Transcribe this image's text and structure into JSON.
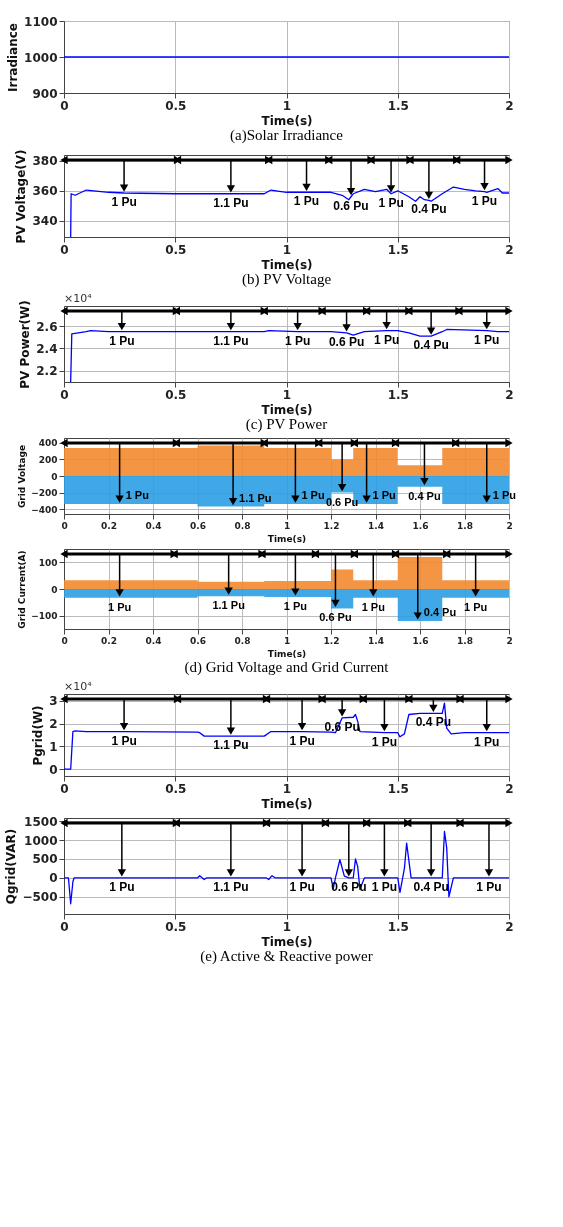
{
  "chart_data": [
    {
      "type": "line",
      "title": "(a)Solar Irradiance",
      "xlabel": "Time(s)",
      "ylabel": "Irradiance",
      "x": [
        0,
        2
      ],
      "series": [
        {
          "color": "#0000ff",
          "values": [
            1000,
            1000
          ]
        }
      ],
      "xlim": [
        0,
        2
      ],
      "xticks": [
        0,
        0.5,
        1,
        1.5,
        2
      ],
      "ylim": [
        900,
        1100
      ],
      "yticks": [
        900,
        1000,
        1100
      ],
      "grid": true
    },
    {
      "type": "line",
      "title": "(b) PV Voltage",
      "xlabel": "Time(s)",
      "ylabel": "PV Voltage(V)",
      "x": [
        0.03,
        0.032,
        0.05,
        0.1,
        0.2,
        0.27,
        0.5,
        0.75,
        0.9,
        0.93,
        1.0,
        1.09,
        1.2,
        1.25,
        1.28,
        1.29,
        1.3,
        1.35,
        1.4,
        1.45,
        1.47,
        1.5,
        1.55,
        1.58,
        1.6,
        1.62,
        1.64,
        1.65,
        1.7,
        1.75,
        1.8,
        1.85,
        1.89,
        1.9,
        1.95,
        1.97,
        2
      ],
      "series": [
        {
          "color": "#0000ff",
          "values": [
            329,
            358,
            357,
            360.5,
            359,
            358.5,
            358,
            358,
            358,
            360.5,
            359,
            359,
            359,
            357,
            354,
            356,
            358,
            361,
            359.5,
            361,
            358,
            360,
            356,
            353,
            356,
            354,
            353.5,
            353,
            358,
            362.5,
            361,
            360,
            359.5,
            359,
            361.5,
            358.5,
            358.5
          ]
        }
      ],
      "annotations": [
        {
          "text": "1 Pu",
          "x": 0.27,
          "y": 358.5
        },
        {
          "text": "1.1 Pu",
          "x": 0.75,
          "y": 358
        },
        {
          "text": "1 Pu",
          "x": 1.09,
          "y": 359
        },
        {
          "text": "0.6 Pu",
          "x": 1.29,
          "y": 356
        },
        {
          "text": "1 Pu",
          "x": 1.47,
          "y": 358
        },
        {
          "text": "0.4 Pu",
          "x": 1.64,
          "y": 353.5
        },
        {
          "text": "1 Pu",
          "x": 1.89,
          "y": 359.5
        }
      ],
      "xlim": [
        0,
        2
      ],
      "xticks": [
        0,
        0.5,
        1,
        1.5,
        2
      ],
      "ylim": [
        329,
        384
      ],
      "yticks": [
        340,
        360,
        380
      ],
      "grid": true
    },
    {
      "type": "line",
      "title": "(c) PV Power",
      "subtitle": "×10⁴",
      "xlabel": "Time(s)",
      "ylabel": "PV Power(W)",
      "x": [
        0.03,
        0.035,
        0.1,
        0.12,
        0.2,
        0.26,
        0.6,
        0.75,
        0.9,
        0.92,
        1.05,
        1.2,
        1.27,
        1.3,
        1.35,
        1.45,
        1.5,
        1.55,
        1.6,
        1.65,
        1.7,
        1.72,
        1.9,
        1.95,
        2
      ],
      "series": [
        {
          "color": "#0000ff",
          "values": [
            2.1,
            2.53,
            2.55,
            2.56,
            2.55,
            2.55,
            2.55,
            2.55,
            2.55,
            2.56,
            2.55,
            2.55,
            2.54,
            2.52,
            2.55,
            2.56,
            2.56,
            2.54,
            2.51,
            2.51,
            2.55,
            2.57,
            2.56,
            2.55,
            2.55
          ]
        }
      ],
      "annotations": [
        {
          "text": "1 Pu",
          "x": 0.26,
          "y": 2.55
        },
        {
          "text": "1.1 Pu",
          "x": 0.75,
          "y": 2.55
        },
        {
          "text": "1 Pu",
          "x": 1.05,
          "y": 2.55
        },
        {
          "text": "0.6 Pu",
          "x": 1.27,
          "y": 2.54
        },
        {
          "text": "1 Pu",
          "x": 1.45,
          "y": 2.56
        },
        {
          "text": "0.4 Pu",
          "x": 1.65,
          "y": 2.51
        },
        {
          "text": "1 Pu",
          "x": 1.9,
          "y": 2.56
        }
      ],
      "xlim": [
        0,
        2
      ],
      "xticks": [
        0,
        0.5,
        1,
        1.5,
        2
      ],
      "ylim": [
        2.1,
        2.78
      ],
      "yticks": [
        2.2,
        2.4,
        2.6
      ],
      "grid": true
    },
    {
      "type": "area",
      "xlabel": "Time(s)",
      "ylabel": "Grid Voltage",
      "x": [
        0,
        0.6,
        0.6,
        0.9,
        0.9,
        1.2,
        1.2,
        1.3,
        1.3,
        1.5,
        1.5,
        1.7,
        1.7,
        2
      ],
      "series": [
        {
          "color": "#f28a2e",
          "values": [
            340,
            340,
            370,
            370,
            340,
            340,
            200,
            200,
            340,
            340,
            130,
            130,
            340,
            340
          ]
        },
        {
          "color": "#2b9fe3",
          "values": [
            -340,
            -340,
            -370,
            -370,
            -340,
            -340,
            -200,
            -200,
            -340,
            -340,
            -130,
            -130,
            -340,
            -340
          ]
        }
      ],
      "annotations": [
        {
          "text": "1 Pu",
          "x": 0.25,
          "y": -340
        },
        {
          "text": "1.1 Pu",
          "x": 0.76,
          "y": -370
        },
        {
          "text": "1 Pu",
          "x": 1.04,
          "y": -340
        },
        {
          "text": "0.6 Pu",
          "x": 1.25,
          "y": -200
        },
        {
          "text": "1 Pu",
          "x": 1.36,
          "y": -340
        },
        {
          "text": "0.4 Pu",
          "x": 1.62,
          "y": -130
        },
        {
          "text": "1 Pu",
          "x": 1.9,
          "y": -340
        }
      ],
      "xlim": [
        0,
        2
      ],
      "xticks": [
        0,
        0.2,
        0.4,
        0.6,
        0.8,
        1,
        1.2,
        1.4,
        1.6,
        1.8,
        2
      ],
      "ylim": [
        -460,
        460
      ],
      "yticks": [
        -400,
        -200,
        0,
        200,
        400
      ],
      "grid": true
    },
    {
      "type": "area",
      "title": "(d) Grid Voltage and Grid Current",
      "xlabel": "Time(s)",
      "ylabel": "Grid Current(A)",
      "x": [
        0,
        0.6,
        0.6,
        0.9,
        0.9,
        1.2,
        1.2,
        1.3,
        1.3,
        1.5,
        1.5,
        1.7,
        1.7,
        2
      ],
      "series": [
        {
          "color": "#f28a2e",
          "values": [
            33,
            33,
            27,
            27,
            30,
            30,
            73,
            73,
            33,
            33,
            120,
            120,
            33,
            33
          ]
        },
        {
          "color": "#2b9fe3",
          "values": [
            -33,
            -33,
            -27,
            -27,
            -30,
            -30,
            -73,
            -73,
            -33,
            -33,
            -120,
            -120,
            -33,
            -33
          ]
        }
      ],
      "annotations": [
        {
          "text": "1 Pu",
          "x": 0.25,
          "y": -33
        },
        {
          "text": "1.1 Pu",
          "x": 0.74,
          "y": -27
        },
        {
          "text": "1 Pu",
          "x": 1.04,
          "y": -30
        },
        {
          "text": "0.6 Pu",
          "x": 1.22,
          "y": -73
        },
        {
          "text": "1 Pu",
          "x": 1.39,
          "y": -33
        },
        {
          "text": "0.4 Pu",
          "x": 1.59,
          "y": -120
        },
        {
          "text": "1 Pu",
          "x": 1.85,
          "y": -33
        }
      ],
      "xlim": [
        0,
        2
      ],
      "xticks": [
        0,
        0.2,
        0.4,
        0.6,
        0.8,
        1,
        1.2,
        1.4,
        1.6,
        1.8,
        2
      ],
      "ylim": [
        -150,
        150
      ],
      "yticks": [
        -100,
        0,
        100
      ],
      "grid": true
    },
    {
      "type": "line",
      "subtitle": "×10⁴",
      "xlabel": "Time(s)",
      "ylabel": "Pgrid(W)",
      "x": [
        0,
        0.03,
        0.04,
        0.05,
        0.1,
        0.27,
        0.6,
        0.61,
        0.63,
        0.75,
        0.9,
        0.93,
        1.07,
        1.2,
        1.22,
        1.25,
        1.3,
        1.31,
        1.32,
        1.33,
        1.44,
        1.5,
        1.51,
        1.53,
        1.55,
        1.6,
        1.66,
        1.7,
        1.71,
        1.72,
        1.74,
        1.8,
        1.9,
        2
      ],
      "series": [
        {
          "color": "#0000ff",
          "values": [
            0,
            0,
            1.65,
            1.68,
            1.65,
            1.65,
            1.63,
            1.6,
            1.45,
            1.45,
            1.45,
            1.65,
            1.65,
            1.63,
            1.6,
            2.25,
            2.28,
            2.4,
            2.1,
            1.65,
            1.6,
            1.6,
            1.42,
            1.55,
            2.4,
            2.45,
            2.45,
            2.45,
            2.9,
            1.8,
            1.55,
            1.6,
            1.6,
            1.6
          ]
        }
      ],
      "annotations": [
        {
          "text": "1 Pu",
          "x": 0.27,
          "y": 1.65
        },
        {
          "text": "1.1 Pu",
          "x": 0.75,
          "y": 1.45
        },
        {
          "text": "1 Pu",
          "x": 1.07,
          "y": 1.65
        },
        {
          "text": "0.6 Pu",
          "x": 1.25,
          "y": 2.25
        },
        {
          "text": "1 Pu",
          "x": 1.44,
          "y": 1.6
        },
        {
          "text": "0.4 Pu",
          "x": 1.66,
          "y": 2.45
        },
        {
          "text": "1 Pu",
          "x": 1.9,
          "y": 1.6
        }
      ],
      "xlim": [
        0,
        2
      ],
      "xticks": [
        0,
        0.5,
        1,
        1.5,
        2
      ],
      "ylim": [
        -0.3,
        3.3
      ],
      "yticks": [
        0,
        1,
        2,
        3
      ],
      "grid": true
    },
    {
      "type": "line",
      "title": "(e) Active & Reactive power",
      "xlabel": "Time(s)",
      "ylabel": "Qgrid(VAR)",
      "x": [
        0,
        0.02,
        0.03,
        0.04,
        0.045,
        0.6,
        0.61,
        0.63,
        0.64,
        0.91,
        0.92,
        0.935,
        0.95,
        1.2,
        1.21,
        1.22,
        1.24,
        1.26,
        1.28,
        1.3,
        1.31,
        1.32,
        1.33,
        1.35,
        1.5,
        1.51,
        1.53,
        1.54,
        1.56,
        1.7,
        1.71,
        1.72,
        1.73,
        1.75,
        2
      ],
      "series": [
        {
          "color": "#0000ff",
          "values": [
            0,
            0,
            -680,
            -100,
            0,
            0,
            60,
            -40,
            0,
            0,
            -40,
            60,
            0,
            0,
            -280,
            0,
            480,
            50,
            0,
            0,
            500,
            300,
            -300,
            0,
            0,
            -380,
            250,
            920,
            0,
            0,
            1230,
            800,
            -500,
            0,
            0
          ]
        }
      ],
      "annotations": [
        {
          "text": "1 Pu",
          "x": 0.26,
          "y": 0
        },
        {
          "text": "1.1 Pu",
          "x": 0.75,
          "y": 0
        },
        {
          "text": "1 Pu",
          "x": 1.07,
          "y": 0
        },
        {
          "text": "0.6 Pu",
          "x": 1.28,
          "y": 0
        },
        {
          "text": "1 Pu",
          "x": 1.44,
          "y": 0
        },
        {
          "text": "0.4 Pu",
          "x": 1.65,
          "y": 0
        },
        {
          "text": "1 Pu",
          "x": 1.91,
          "y": 0
        }
      ],
      "xlim": [
        0,
        2
      ],
      "xticks": [
        0,
        0.5,
        1,
        1.5,
        2
      ],
      "ylim": [
        -950,
        1580
      ],
      "yticks": [
        -500,
        0,
        500,
        1000,
        1500
      ],
      "grid": true
    }
  ]
}
